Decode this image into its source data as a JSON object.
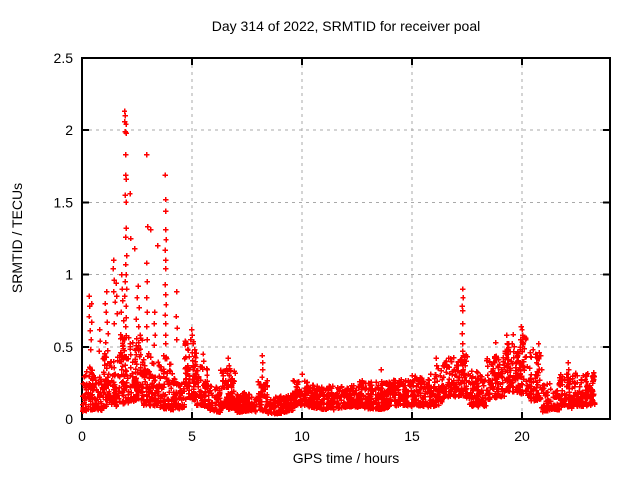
{
  "title": "Day 314 of 2022, SRMTID for receiver poal",
  "colors": {
    "marker": "#ff0000",
    "grid": "#a9a9a9",
    "border": "#000000",
    "background": "#ffffff",
    "text": "#000000"
  },
  "chart_data": {
    "type": "scatter",
    "title": "Day 314 of 2022, SRMTID for receiver poal",
    "xlabel": "GPS time / hours",
    "ylabel": "SRMTID / TECUs",
    "xlim": [
      0,
      24
    ],
    "ylim": [
      0,
      2.5
    ],
    "grid": "dashed-major",
    "legend": "none",
    "marker": "plus",
    "x_ticks": [
      {
        "value": 0,
        "label": "0"
      },
      {
        "value": 5,
        "label": "5"
      },
      {
        "value": 10,
        "label": "10"
      },
      {
        "value": 15,
        "label": "15"
      },
      {
        "value": 20,
        "label": "20"
      }
    ],
    "y_ticks": [
      {
        "value": 0,
        "label": "0"
      },
      {
        "value": 0.5,
        "label": "0.5"
      },
      {
        "value": 1,
        "label": "1"
      },
      {
        "value": 1.5,
        "label": "1.5"
      },
      {
        "value": 2,
        "label": "2"
      },
      {
        "value": 2.5,
        "label": "2.5"
      }
    ],
    "x_gridlines": [
      5,
      10,
      15,
      20
    ],
    "y_gridlines": [
      0.5,
      1.0,
      1.5,
      2.0
    ],
    "data_extent_hours": [
      0,
      23.3
    ],
    "notable_points": [
      [
        1.93,
        2.13
      ],
      [
        1.97,
        2.1
      ],
      [
        1.95,
        2.06
      ],
      [
        2.0,
        2.04
      ],
      [
        1.96,
        1.99
      ],
      [
        2.02,
        1.98
      ],
      [
        1.98,
        1.83
      ],
      [
        1.99,
        1.69
      ],
      [
        2.02,
        1.66
      ],
      [
        1.97,
        1.55
      ],
      [
        2.0,
        1.5
      ],
      [
        2.01,
        1.32
      ],
      [
        1.98,
        1.26
      ],
      [
        2.03,
        1.13
      ],
      [
        1.99,
        1.07
      ],
      [
        2.0,
        1.0
      ],
      [
        1.97,
        0.95
      ],
      [
        2.04,
        0.9
      ],
      [
        1.95,
        0.85
      ],
      [
        2.0,
        0.78
      ],
      [
        2.02,
        0.7
      ],
      [
        1.98,
        0.64
      ],
      [
        2.18,
        1.56
      ],
      [
        2.22,
        1.25
      ],
      [
        2.4,
        1.18
      ],
      [
        2.55,
        0.92
      ],
      [
        2.5,
        0.84
      ],
      [
        2.6,
        0.77
      ],
      [
        2.46,
        0.69
      ],
      [
        2.57,
        0.64
      ],
      [
        2.65,
        0.58
      ],
      [
        2.95,
        1.83
      ],
      [
        2.98,
        1.33
      ],
      [
        3.12,
        1.31
      ],
      [
        2.94,
        1.08
      ],
      [
        2.96,
        0.95
      ],
      [
        2.95,
        0.84
      ],
      [
        2.97,
        0.74
      ],
      [
        2.94,
        0.64
      ],
      [
        2.96,
        0.55
      ],
      [
        3.3,
        0.74
      ],
      [
        3.28,
        0.66
      ],
      [
        3.32,
        0.58
      ],
      [
        3.29,
        0.51
      ],
      [
        3.45,
        1.2
      ],
      [
        3.79,
        1.69
      ],
      [
        3.81,
        1.52
      ],
      [
        3.8,
        1.44
      ],
      [
        3.8,
        1.31
      ],
      [
        3.82,
        1.24
      ],
      [
        3.79,
        1.17
      ],
      [
        3.81,
        1.1
      ],
      [
        3.8,
        1.04
      ],
      [
        3.78,
        0.93
      ],
      [
        3.8,
        0.86
      ],
      [
        3.82,
        0.79
      ],
      [
        3.79,
        0.72
      ],
      [
        3.81,
        0.66
      ],
      [
        3.8,
        0.58
      ],
      [
        3.8,
        0.52
      ],
      [
        4.3,
        0.88
      ],
      [
        4.28,
        0.71
      ],
      [
        4.33,
        0.63
      ],
      [
        4.3,
        0.55
      ],
      [
        0.33,
        0.85
      ],
      [
        0.35,
        0.78
      ],
      [
        0.32,
        0.71
      ],
      [
        0.43,
        0.8
      ],
      [
        0.45,
        0.67
      ],
      [
        0.37,
        0.61
      ],
      [
        0.41,
        0.55
      ],
      [
        0.39,
        0.48
      ],
      [
        0.8,
        0.62
      ],
      [
        0.82,
        0.54
      ],
      [
        0.78,
        0.47
      ],
      [
        1.05,
        0.8
      ],
      [
        1.12,
        0.88
      ],
      [
        1.09,
        0.74
      ],
      [
        1.15,
        0.67
      ],
      [
        1.18,
        0.59
      ],
      [
        1.08,
        0.53
      ],
      [
        1.44,
        1.1
      ],
      [
        1.42,
        1.04
      ],
      [
        1.47,
        0.96
      ],
      [
        1.45,
        0.88
      ],
      [
        1.5,
        0.81
      ],
      [
        1.55,
        0.94
      ],
      [
        1.58,
        0.85
      ],
      [
        1.61,
        0.73
      ],
      [
        1.46,
        0.66
      ],
      [
        1.8,
        1.0
      ],
      [
        1.83,
        0.9
      ],
      [
        1.86,
        0.82
      ],
      [
        1.78,
        0.74
      ],
      [
        1.9,
        0.68
      ],
      [
        4.98,
        0.62
      ],
      [
        5.02,
        0.58
      ],
      [
        4.95,
        0.55
      ],
      [
        5.06,
        0.52
      ],
      [
        5.12,
        0.48
      ],
      [
        5.5,
        0.45
      ],
      [
        5.53,
        0.4
      ],
      [
        5.47,
        0.36
      ],
      [
        6.65,
        0.42
      ],
      [
        6.68,
        0.37
      ],
      [
        6.61,
        0.33
      ],
      [
        8.2,
        0.44
      ],
      [
        8.22,
        0.39
      ],
      [
        8.21,
        0.34
      ],
      [
        8.18,
        0.29
      ],
      [
        10.02,
        0.31
      ],
      [
        13.6,
        0.34
      ],
      [
        16.1,
        0.42
      ],
      [
        16.13,
        0.37
      ],
      [
        17.3,
        0.9
      ],
      [
        17.32,
        0.84
      ],
      [
        17.29,
        0.78
      ],
      [
        17.31,
        0.75
      ],
      [
        17.3,
        0.66
      ],
      [
        17.28,
        0.59
      ],
      [
        17.31,
        0.52
      ],
      [
        17.3,
        0.47
      ],
      [
        17.32,
        0.44
      ],
      [
        17.29,
        0.38
      ],
      [
        18.8,
        0.53
      ],
      [
        19.3,
        0.58
      ],
      [
        19.33,
        0.52
      ],
      [
        19.28,
        0.47
      ],
      [
        19.97,
        0.64
      ],
      [
        20.0,
        0.62
      ],
      [
        20.03,
        0.58
      ],
      [
        19.94,
        0.55
      ],
      [
        20.06,
        0.52
      ],
      [
        20.5,
        0.48
      ],
      [
        20.75,
        0.52
      ],
      [
        20.78,
        0.46
      ],
      [
        20.72,
        0.42
      ],
      [
        22.1,
        0.39
      ],
      [
        22.13,
        0.34
      ]
    ],
    "band_segments": [
      [
        0.0,
        0.5,
        0.05,
        0.35,
        110
      ],
      [
        0.5,
        0.95,
        0.05,
        0.28,
        95
      ],
      [
        0.95,
        1.35,
        0.08,
        0.5,
        100
      ],
      [
        1.35,
        1.75,
        0.1,
        0.46,
        100
      ],
      [
        1.75,
        2.25,
        0.12,
        0.6,
        110
      ],
      [
        2.25,
        2.75,
        0.12,
        0.55,
        105
      ],
      [
        2.75,
        3.25,
        0.08,
        0.45,
        100
      ],
      [
        3.25,
        3.7,
        0.08,
        0.4,
        95
      ],
      [
        3.7,
        4.15,
        0.08,
        0.45,
        95
      ],
      [
        4.15,
        4.65,
        0.08,
        0.3,
        95
      ],
      [
        4.65,
        5.2,
        0.12,
        0.55,
        105
      ],
      [
        5.2,
        5.7,
        0.08,
        0.35,
        95
      ],
      [
        5.7,
        6.3,
        0.06,
        0.25,
        90
      ],
      [
        6.3,
        7.0,
        0.08,
        0.36,
        95
      ],
      [
        7.0,
        8.0,
        0.04,
        0.17,
        85
      ],
      [
        8.0,
        8.45,
        0.06,
        0.28,
        90
      ],
      [
        8.45,
        9.6,
        0.05,
        0.17,
        85
      ],
      [
        9.6,
        10.4,
        0.08,
        0.27,
        90
      ],
      [
        10.4,
        11.4,
        0.08,
        0.24,
        90
      ],
      [
        11.4,
        12.6,
        0.07,
        0.22,
        90
      ],
      [
        12.6,
        13.8,
        0.08,
        0.27,
        90
      ],
      [
        13.8,
        15.0,
        0.08,
        0.26,
        90
      ],
      [
        15.0,
        15.8,
        0.1,
        0.3,
        90
      ],
      [
        15.8,
        16.4,
        0.1,
        0.36,
        90
      ],
      [
        16.4,
        17.15,
        0.14,
        0.42,
        95
      ],
      [
        17.15,
        17.6,
        0.15,
        0.46,
        95
      ],
      [
        17.6,
        18.4,
        0.1,
        0.35,
        90
      ],
      [
        18.4,
        19.2,
        0.14,
        0.45,
        90
      ],
      [
        19.2,
        19.6,
        0.18,
        0.52,
        95
      ],
      [
        19.6,
        20.25,
        0.18,
        0.58,
        95
      ],
      [
        20.25,
        20.9,
        0.14,
        0.48,
        90
      ],
      [
        20.9,
        21.7,
        0.05,
        0.24,
        85
      ],
      [
        21.7,
        22.3,
        0.08,
        0.32,
        85
      ],
      [
        22.3,
        23.3,
        0.1,
        0.33,
        100
      ]
    ]
  }
}
